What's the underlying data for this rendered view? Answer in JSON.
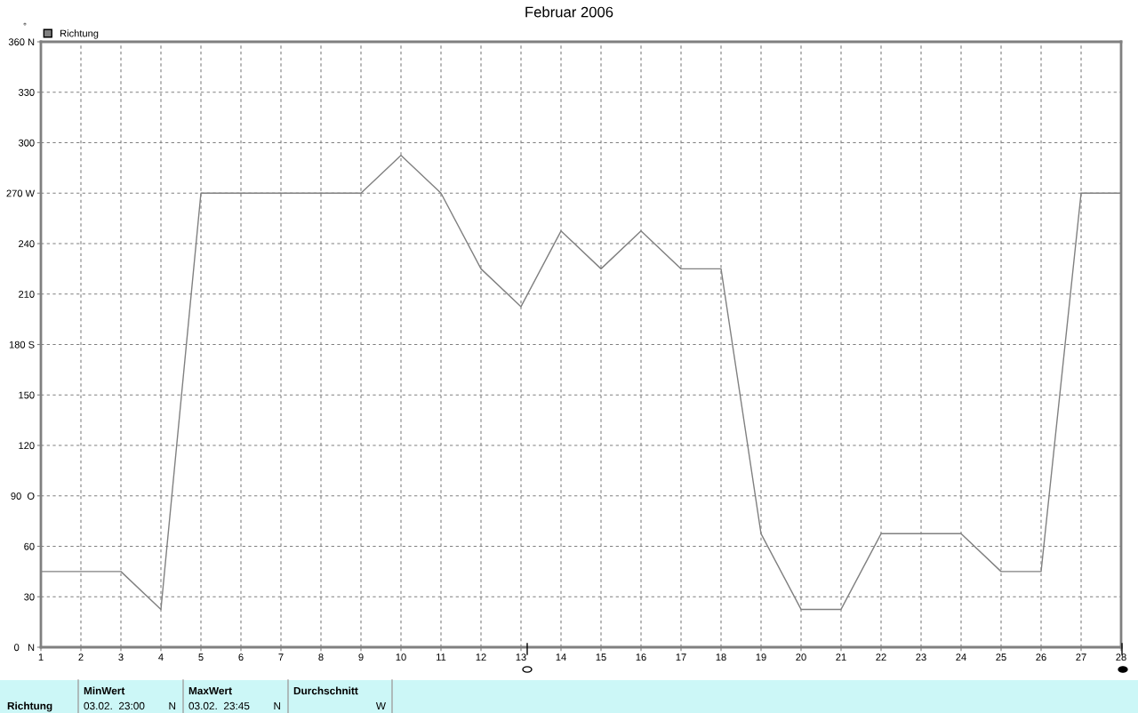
{
  "chart_data": {
    "type": "line",
    "title": "Februar 2006",
    "ylabel": "°",
    "x": [
      1,
      2,
      3,
      4,
      5,
      6,
      7,
      8,
      9,
      10,
      11,
      12,
      13,
      14,
      15,
      16,
      17,
      18,
      19,
      20,
      21,
      22,
      23,
      24,
      25,
      26,
      27,
      28
    ],
    "series": [
      {
        "name": "Richtung",
        "color": "#808080",
        "values": [
          45,
          45,
          45,
          22.5,
          270,
          270,
          270,
          270,
          270,
          292.5,
          270,
          225,
          202.5,
          247.5,
          225,
          247.5,
          225,
          225,
          67.5,
          22.5,
          22.5,
          67.5,
          67.5,
          67.5,
          45,
          45,
          270,
          270
        ]
      }
    ],
    "xlim": [
      1,
      28
    ],
    "xticks": [
      1,
      2,
      3,
      4,
      5,
      6,
      7,
      8,
      9,
      10,
      11,
      12,
      13,
      14,
      15,
      16,
      17,
      18,
      19,
      20,
      21,
      22,
      23,
      24,
      25,
      26,
      27,
      28
    ],
    "ylim": [
      0,
      360
    ],
    "yticks": [
      {
        "value": 0,
        "label": "0   N"
      },
      30,
      60,
      {
        "value": 90,
        "label": "90  O"
      },
      120,
      150,
      {
        "value": 180,
        "label": "180 S"
      },
      210,
      240,
      {
        "value": 270,
        "label": "270 W"
      },
      300,
      330,
      {
        "value": 360,
        "label": "360 N"
      }
    ],
    "grid": true,
    "legend": "top left",
    "marker": "none",
    "line_style": "solid",
    "annotations": [
      "Richtung",
      "MinWert",
      "03.02.  23:00",
      "N",
      "MaxWert",
      "03.02.  23:45",
      "N",
      "Durchschnitt",
      "W"
    ]
  }
}
